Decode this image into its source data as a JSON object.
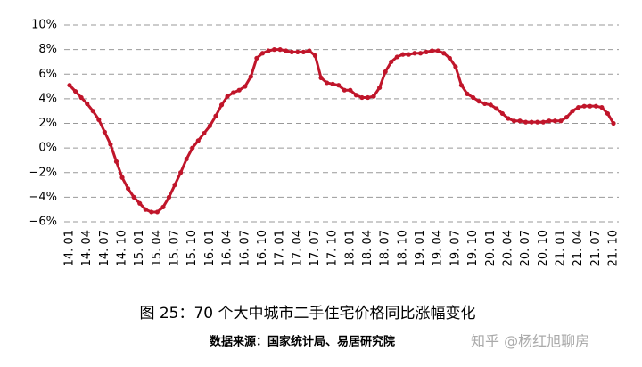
{
  "chart_data": {
    "type": "line",
    "title": "图 25：70 个大中城市二手住宅价格同比涨幅变化",
    "source": "数据来源：国家统计局、易居研究院",
    "watermark": "知乎 @杨红旭聊房",
    "categories": [
      "14. 01",
      null,
      null,
      "14. 04",
      null,
      null,
      "14. 07",
      null,
      null,
      "14. 10",
      null,
      null,
      "15. 01",
      null,
      null,
      "15. 04",
      null,
      null,
      "15. 07",
      null,
      null,
      "15. 10",
      null,
      null,
      "16. 01",
      null,
      null,
      "16. 04",
      null,
      null,
      "16. 07",
      null,
      null,
      "16. 10",
      null,
      null,
      "17. 01",
      null,
      null,
      "17. 04",
      null,
      null,
      "17. 07",
      null,
      null,
      "17. 10",
      null,
      null,
      "18. 01",
      null,
      null,
      "18. 04",
      null,
      null,
      "18. 07",
      null,
      null,
      "18. 10",
      null,
      null,
      "19. 01",
      null,
      null,
      "19. 04",
      null,
      null,
      "19. 07",
      null,
      null,
      "19. 10",
      null,
      null,
      "20. 01",
      null,
      null,
      "20. 04",
      null,
      null,
      "20. 07",
      null,
      null,
      "20. 10",
      null,
      null,
      "21. 01",
      null,
      null,
      "21. 04",
      null,
      null,
      "21. 07",
      null,
      null,
      "21. 10"
    ],
    "series": [
      {
        "color": "#c0152a",
        "values": [
          5.1,
          4.6,
          4.1,
          3.6,
          3.0,
          2.3,
          1.3,
          0.3,
          -1.1,
          -2.4,
          -3.3,
          -4.0,
          -4.5,
          -5.0,
          -5.2,
          -5.2,
          -4.8,
          -4.0,
          -3.0,
          -2.0,
          -0.9,
          0.0,
          0.6,
          1.2,
          1.8,
          2.6,
          3.5,
          4.2,
          4.5,
          4.7,
          5.0,
          5.8,
          7.3,
          7.7,
          7.9,
          8.0,
          8.0,
          7.9,
          7.8,
          7.8,
          7.8,
          7.9,
          7.5,
          5.7,
          5.3,
          5.2,
          5.1,
          4.7,
          4.7,
          4.3,
          4.1,
          4.1,
          4.2,
          4.9,
          6.2,
          7.0,
          7.4,
          7.6,
          7.6,
          7.7,
          7.7,
          7.8,
          7.9,
          7.9,
          7.7,
          7.3,
          6.6,
          5.1,
          4.4,
          4.1,
          3.8,
          3.6,
          3.5,
          3.2,
          2.8,
          2.4,
          2.2,
          2.2,
          2.1,
          2.1,
          2.1,
          2.1,
          2.2,
          2.2,
          2.2,
          2.5,
          3.0,
          3.3,
          3.4,
          3.4,
          3.4,
          3.3,
          2.8,
          2.0
        ]
      }
    ],
    "ylim": [
      -6,
      10
    ],
    "yticks": [
      {
        "value": -6,
        "label": "−6%"
      },
      {
        "value": -4,
        "label": "−4%"
      },
      {
        "value": -2,
        "label": "−2%"
      },
      {
        "value": 0,
        "label": "0%"
      },
      {
        "value": 2,
        "label": "2%"
      },
      {
        "value": 4,
        "label": "4%"
      },
      {
        "value": 6,
        "label": "6%"
      },
      {
        "value": 8,
        "label": "8%"
      },
      {
        "value": 10,
        "label": "10%"
      }
    ],
    "grid": true
  }
}
